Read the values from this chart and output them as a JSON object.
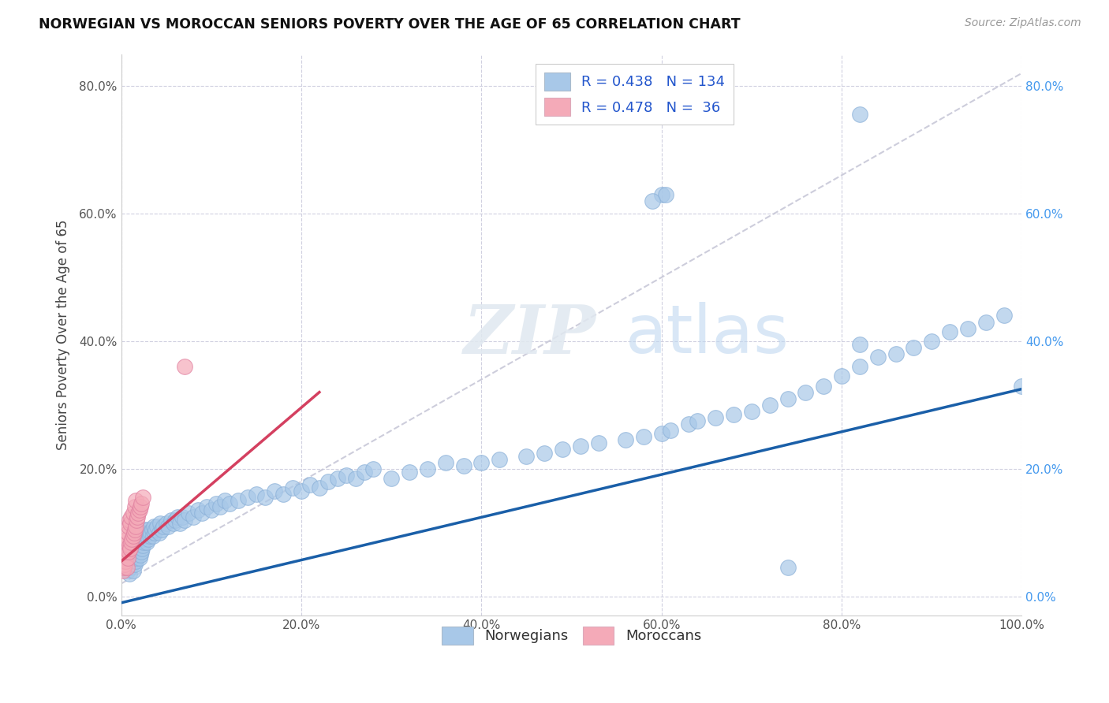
{
  "title": "NORWEGIAN VS MOROCCAN SENIORS POVERTY OVER THE AGE OF 65 CORRELATION CHART",
  "source": "Source: ZipAtlas.com",
  "ylabel": "Seniors Poverty Over the Age of 65",
  "xlim": [
    0,
    1.0
  ],
  "ylim": [
    -0.03,
    0.85
  ],
  "x_ticks": [
    0.0,
    0.2,
    0.4,
    0.6,
    0.8,
    1.0
  ],
  "x_tick_labels": [
    "0.0%",
    "20.0%",
    "40.0%",
    "60.0%",
    "80.0%",
    "100.0%"
  ],
  "y_ticks": [
    0.0,
    0.2,
    0.4,
    0.6,
    0.8
  ],
  "y_tick_labels": [
    "0.0%",
    "20.0%",
    "40.0%",
    "60.0%",
    "80.0%"
  ],
  "norwegian_R": 0.438,
  "norwegian_N": 134,
  "moroccan_R": 0.478,
  "moroccan_N": 36,
  "norwegian_color": "#a8c8e8",
  "moroccan_color": "#f4aab8",
  "norwegian_line_color": "#1a5fa8",
  "moroccan_line_color": "#d44060",
  "trend_line_color": "#c8c8d8",
  "background_color": "#ffffff",
  "grid_color": "#d0d0e0",
  "watermark_zip": "ZIP",
  "watermark_atlas": "atlas",
  "legend_entries": [
    "Norwegians",
    "Moroccans"
  ],
  "nor_x": [
    0.005,
    0.007,
    0.008,
    0.009,
    0.01,
    0.01,
    0.011,
    0.012,
    0.012,
    0.013,
    0.013,
    0.014,
    0.014,
    0.015,
    0.015,
    0.015,
    0.016,
    0.016,
    0.017,
    0.017,
    0.018,
    0.018,
    0.019,
    0.019,
    0.02,
    0.02,
    0.021,
    0.021,
    0.022,
    0.022,
    0.023,
    0.023,
    0.024,
    0.024,
    0.025,
    0.025,
    0.026,
    0.026,
    0.027,
    0.028,
    0.028,
    0.029,
    0.03,
    0.03,
    0.031,
    0.032,
    0.033,
    0.034,
    0.035,
    0.036,
    0.037,
    0.038,
    0.04,
    0.042,
    0.043,
    0.045,
    0.047,
    0.05,
    0.052,
    0.055,
    0.058,
    0.06,
    0.062,
    0.065,
    0.068,
    0.07,
    0.075,
    0.08,
    0.085,
    0.09,
    0.095,
    0.1,
    0.105,
    0.11,
    0.115,
    0.12,
    0.13,
    0.14,
    0.15,
    0.16,
    0.17,
    0.18,
    0.19,
    0.2,
    0.21,
    0.22,
    0.23,
    0.24,
    0.25,
    0.26,
    0.27,
    0.28,
    0.3,
    0.32,
    0.34,
    0.36,
    0.38,
    0.4,
    0.42,
    0.45,
    0.47,
    0.49,
    0.51,
    0.53,
    0.56,
    0.58,
    0.6,
    0.61,
    0.63,
    0.64,
    0.66,
    0.68,
    0.7,
    0.72,
    0.74,
    0.76,
    0.78,
    0.8,
    0.82,
    0.84,
    0.86,
    0.88,
    0.9,
    0.92,
    0.94,
    0.96,
    0.98,
    1.0,
    0.6,
    0.605,
    0.59,
    0.82,
    0.82,
    0.74
  ],
  "nor_y": [
    0.05,
    0.04,
    0.055,
    0.035,
    0.065,
    0.045,
    0.06,
    0.05,
    0.07,
    0.055,
    0.04,
    0.06,
    0.075,
    0.05,
    0.065,
    0.08,
    0.055,
    0.07,
    0.06,
    0.075,
    0.065,
    0.08,
    0.07,
    0.085,
    0.06,
    0.075,
    0.065,
    0.08,
    0.07,
    0.085,
    0.075,
    0.09,
    0.08,
    0.095,
    0.085,
    0.1,
    0.09,
    0.105,
    0.095,
    0.085,
    0.1,
    0.095,
    0.09,
    0.105,
    0.1,
    0.095,
    0.1,
    0.105,
    0.095,
    0.11,
    0.1,
    0.105,
    0.11,
    0.1,
    0.115,
    0.105,
    0.11,
    0.115,
    0.11,
    0.12,
    0.115,
    0.12,
    0.125,
    0.115,
    0.125,
    0.12,
    0.13,
    0.125,
    0.135,
    0.13,
    0.14,
    0.135,
    0.145,
    0.14,
    0.15,
    0.145,
    0.15,
    0.155,
    0.16,
    0.155,
    0.165,
    0.16,
    0.17,
    0.165,
    0.175,
    0.17,
    0.18,
    0.185,
    0.19,
    0.185,
    0.195,
    0.2,
    0.185,
    0.195,
    0.2,
    0.21,
    0.205,
    0.21,
    0.215,
    0.22,
    0.225,
    0.23,
    0.235,
    0.24,
    0.245,
    0.25,
    0.255,
    0.26,
    0.27,
    0.275,
    0.28,
    0.285,
    0.29,
    0.3,
    0.31,
    0.32,
    0.33,
    0.345,
    0.36,
    0.375,
    0.38,
    0.39,
    0.4,
    0.415,
    0.42,
    0.43,
    0.44,
    0.33,
    0.63,
    0.63,
    0.62,
    0.755,
    0.395,
    0.045
  ],
  "mor_x": [
    0.002,
    0.003,
    0.003,
    0.004,
    0.004,
    0.004,
    0.005,
    0.005,
    0.006,
    0.006,
    0.007,
    0.007,
    0.008,
    0.008,
    0.009,
    0.009,
    0.01,
    0.01,
    0.011,
    0.011,
    0.012,
    0.013,
    0.013,
    0.014,
    0.015,
    0.015,
    0.016,
    0.016,
    0.017,
    0.018,
    0.019,
    0.02,
    0.021,
    0.022,
    0.024,
    0.07
  ],
  "mor_y": [
    0.04,
    0.045,
    0.06,
    0.05,
    0.065,
    0.08,
    0.055,
    0.07,
    0.045,
    0.09,
    0.06,
    0.1,
    0.07,
    0.11,
    0.08,
    0.12,
    0.075,
    0.115,
    0.085,
    0.125,
    0.09,
    0.095,
    0.13,
    0.1,
    0.105,
    0.14,
    0.11,
    0.15,
    0.12,
    0.125,
    0.13,
    0.135,
    0.14,
    0.145,
    0.155,
    0.36
  ],
  "nor_trend_x0": 0.0,
  "nor_trend_y0": -0.01,
  "nor_trend_x1": 1.0,
  "nor_trend_y1": 0.325,
  "mor_trend_x0": 0.0,
  "mor_trend_y0": 0.055,
  "mor_trend_x1": 0.22,
  "mor_trend_y1": 0.32,
  "overall_trend_x0": 0.0,
  "overall_trend_y0": 0.02,
  "overall_trend_x1": 1.0,
  "overall_trend_y1": 0.82
}
